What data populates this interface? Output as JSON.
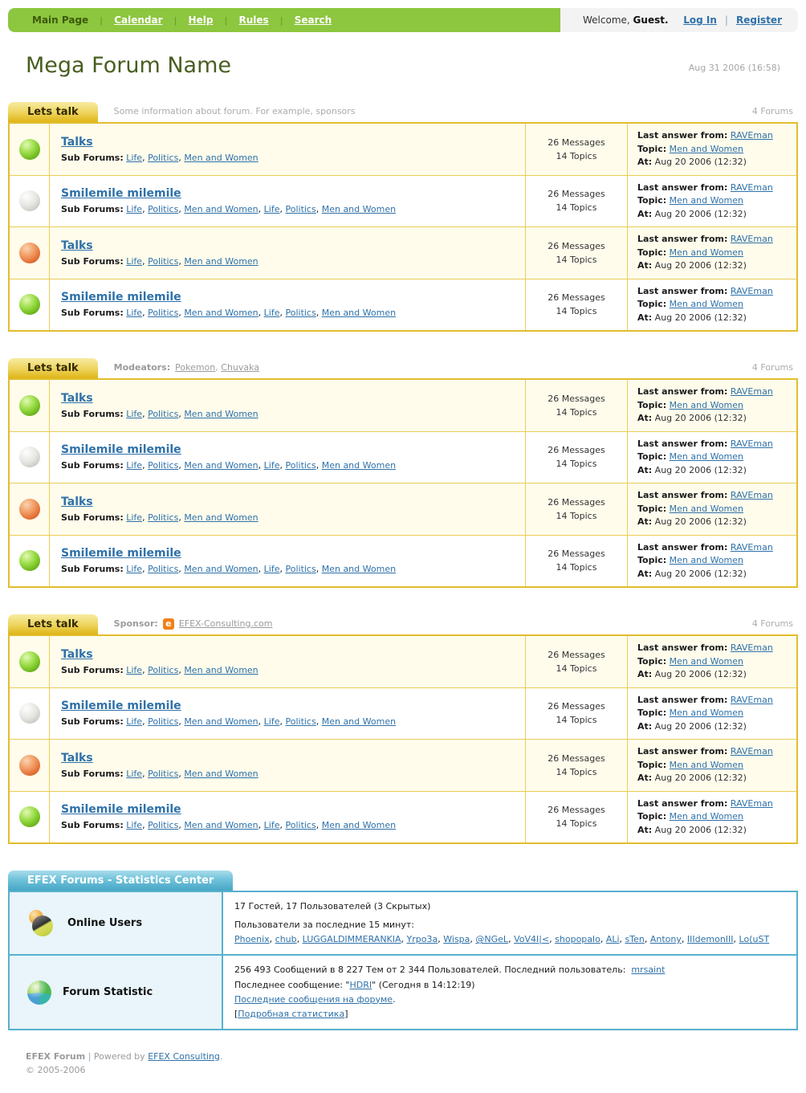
{
  "ui": {
    "list_separator": ", ",
    "nav_separator": "|"
  },
  "topbar": {
    "nav": [
      {
        "label": "Main Page",
        "current": true
      },
      {
        "label": "Calendar"
      },
      {
        "label": "Help"
      },
      {
        "label": "Rules"
      },
      {
        "label": "Search"
      }
    ],
    "welcome_prefix": "Welcome,",
    "welcome_user": "Guest.",
    "login_label": "Log In",
    "separator": "|",
    "register_label": "Register"
  },
  "header": {
    "title": "Mega Forum Name",
    "date": "Aug 31 2006  (16:58)"
  },
  "labels": {
    "sub_forums": "Sub Forums:",
    "last_from": "Last answer from:",
    "topic": "Topic:",
    "at": "At:"
  },
  "sections": [
    {
      "tab_label": "Lets talk",
      "info_text": "Some information about forum. For example, sponsors",
      "forums_count": "4 Forums",
      "rows": [
        {
          "status": "green",
          "title": "Talks",
          "subforums": [
            "Life",
            "Politics",
            "Men and Women"
          ],
          "messages": "26 Messages",
          "topics": "14 Topics",
          "last_from": "RAVEman",
          "topic": "Men and Women",
          "at": "Aug 20 2006 (12:32)"
        },
        {
          "status": "gray",
          "title": "Smilemile milemile",
          "subforums": [
            "Life",
            "Politics",
            "Men and Women",
            "Life",
            "Politics",
            "Men and Women"
          ],
          "messages": "26 Messages",
          "topics": "14 Topics",
          "last_from": "RAVEman",
          "topic": "Men and Women",
          "at": "Aug 20 2006 (12:32)"
        },
        {
          "status": "orange",
          "title": "Talks",
          "subforums": [
            "Life",
            "Politics",
            "Men and Women"
          ],
          "messages": "26 Messages",
          "topics": "14 Topics",
          "last_from": "RAVEman",
          "topic": "Men and Women",
          "at": "Aug 20 2006 (12:32)"
        },
        {
          "status": "green",
          "title": "Smilemile milemile",
          "subforums": [
            "Life",
            "Politics",
            "Men and Women",
            "Life",
            "Politics",
            "Men and Women"
          ],
          "messages": "26 Messages",
          "topics": "14 Topics",
          "last_from": "RAVEman",
          "topic": "Men and Women",
          "at": "Aug 20 2006 (12:32)"
        }
      ]
    },
    {
      "tab_label": "Lets talk",
      "info_label": "Modeators:",
      "moderators": [
        "Pokemon",
        "Chuvaka"
      ],
      "forums_count": "4 Forums",
      "rows": [
        {
          "status": "green",
          "title": "Talks",
          "subforums": [
            "Life",
            "Politics",
            "Men and Women"
          ],
          "messages": "26 Messages",
          "topics": "14 Topics",
          "last_from": "RAVEman",
          "topic": "Men and Women",
          "at": "Aug 20 2006 (12:32)"
        },
        {
          "status": "gray",
          "title": "Smilemile milemile",
          "subforums": [
            "Life",
            "Politics",
            "Men and Women",
            "Life",
            "Politics",
            "Men and Women"
          ],
          "messages": "26 Messages",
          "topics": "14 Topics",
          "last_from": "RAVEman",
          "topic": "Men and Women",
          "at": "Aug 20 2006 (12:32)"
        },
        {
          "status": "orange",
          "title": "Talks",
          "subforums": [
            "Life",
            "Politics",
            "Men and Women"
          ],
          "messages": "26 Messages",
          "topics": "14 Topics",
          "last_from": "RAVEman",
          "topic": "Men and Women",
          "at": "Aug 20 2006 (12:32)"
        },
        {
          "status": "green",
          "title": "Smilemile milemile",
          "subforums": [
            "Life",
            "Politics",
            "Men and Women",
            "Life",
            "Politics",
            "Men and Women"
          ],
          "messages": "26 Messages",
          "topics": "14 Topics",
          "last_from": "RAVEman",
          "topic": "Men and Women",
          "at": "Aug 20 2006 (12:32)"
        }
      ]
    },
    {
      "tab_label": "Lets talk",
      "info_label": "Sponsor:",
      "sponsor_icon_glyph": "e",
      "sponsor_link": "EFEX-Consulting.com",
      "forums_count": "4 Forums",
      "rows": [
        {
          "status": "green",
          "title": "Talks",
          "subforums": [
            "Life",
            "Politics",
            "Men and Women"
          ],
          "messages": "26 Messages",
          "topics": "14 Topics",
          "last_from": "RAVEman",
          "topic": "Men and Women",
          "at": "Aug 20 2006 (12:32)"
        },
        {
          "status": "gray",
          "title": "Smilemile milemile",
          "subforums": [
            "Life",
            "Politics",
            "Men and Women",
            "Life",
            "Politics",
            "Men and Women"
          ],
          "messages": "26 Messages",
          "topics": "14 Topics",
          "last_from": "RAVEman",
          "topic": "Men and Women",
          "at": "Aug 20 2006 (12:32)"
        },
        {
          "status": "orange",
          "title": "Talks",
          "subforums": [
            "Life",
            "Politics",
            "Men and Women"
          ],
          "messages": "26 Messages",
          "topics": "14 Topics",
          "last_from": "RAVEman",
          "topic": "Men and Women",
          "at": "Aug 20 2006 (12:32)"
        },
        {
          "status": "green",
          "title": "Smilemile milemile",
          "subforums": [
            "Life",
            "Politics",
            "Men and Women",
            "Life",
            "Politics",
            "Men and Women"
          ],
          "messages": "26 Messages",
          "topics": "14 Topics",
          "last_from": "RAVEman",
          "topic": "Men and Women",
          "at": "Aug 20 2006 (12:32)"
        }
      ]
    }
  ],
  "stats": {
    "tab_label": "EFEX Forums - Statistics Center",
    "online": {
      "label": "Online Users",
      "line1": "17 Гостей, 17 Пользователей (3 Скрытых)",
      "line2": "Пользователи за последние 15 минут:",
      "users": [
        "Phoenix",
        "chub",
        "LUGGALDIMMERANKIA",
        "Yrpo3a",
        "Wispa",
        "@NGeL",
        "VoV4I|<",
        "shopopalo",
        "ALi",
        "sTen",
        "Antony",
        "IIIdemonIII",
        "Lo(uST"
      ]
    },
    "forum_stat": {
      "label": "Forum Statistic",
      "line1_prefix": "256 493 Сообщений в 8 227 Тем от 2 344 Пользователей. Последний пользователь:",
      "line1_link": "mrsaint",
      "line2_prefix": "Последнее сообщение: \"",
      "line2_link": "HDRI",
      "line2_suffix": "\" (Сегодня в 14:12:19)",
      "line3_link": "Последние сообщения на форуме",
      "line3_suffix": ".",
      "line4_open": "[",
      "line4_link": "Подробная статистика",
      "line4_close": "]"
    }
  },
  "footer": {
    "brand": "EFEX Forum",
    "separator": "|",
    "powered_prefix": "Powered by",
    "powered_link": "EFEX Consulting",
    "powered_suffix": ".",
    "copyright": "© 2005-2006"
  }
}
